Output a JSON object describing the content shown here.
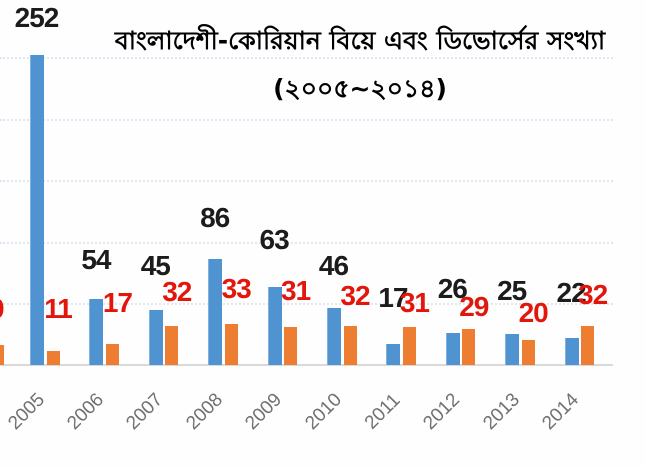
{
  "title": {
    "line1": "বাংলাদেশী-কোরিয়ান বিয়ে এবং ডিভোর্সের সংখ্যা",
    "line2": "(২০০৫~২০১৪)"
  },
  "chart_data": {
    "type": "bar",
    "title": "বাংলাদেশী-কোরিয়ান বিয়ে এবং ডিভোর্সের সংখ্যা (২০০৫~২০১৪)",
    "categories": [
      "2005",
      "2006",
      "2007",
      "2008",
      "2009",
      "2010",
      "2011",
      "2012",
      "2013",
      "2014"
    ],
    "series": [
      {
        "name": "blue",
        "color": "#4f93d1",
        "label_color": "#1c1c1c",
        "values": [
          252,
          54,
          45,
          86,
          63,
          46,
          17,
          26,
          25,
          22
        ]
      },
      {
        "name": "orange",
        "color": "#ed7d31",
        "label_color": "#e3160c",
        "values": [
          11,
          17,
          32,
          33,
          31,
          32,
          31,
          29,
          20,
          32
        ]
      }
    ],
    "xlabel": "",
    "ylabel": "",
    "ylim": [
      0,
      260
    ],
    "gridline_interval": 50,
    "grid": true,
    "legend_position": "none",
    "data_labels": true,
    "tick_rotation_deg": -45
  },
  "clipped_edge": {
    "label_fragment": "0"
  },
  "colors": {
    "bar_blue": "#4f93d1",
    "bar_orange": "#ed7d31",
    "label_black": "#1c1c1c",
    "label_red": "#e3160c",
    "tick_gray": "#717171",
    "gridline": "#d7e2f0",
    "axis": "#d9d9d9",
    "background": "#fefefe"
  }
}
